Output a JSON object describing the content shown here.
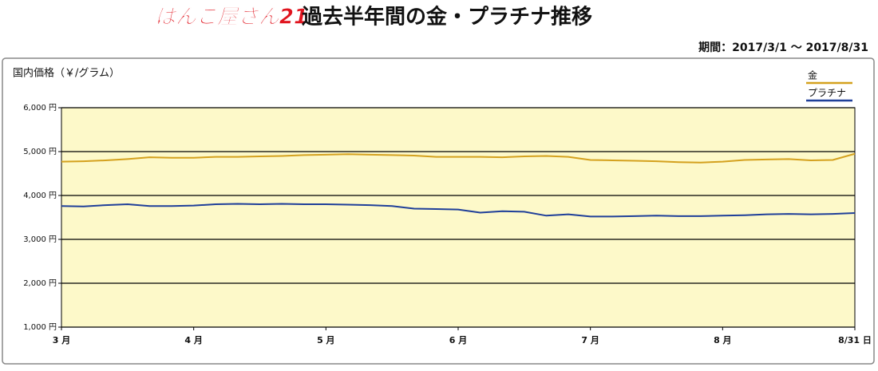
{
  "chart_data": {
    "type": "line",
    "logo": "はんこ屋さん21",
    "title": "過去半年間の金・プラチナ推移",
    "subtitle": "期間：2017/3/1 〜 2017/8/31",
    "y_label": "国内価格（￥/グラム）",
    "categories": [
      "3 月",
      null,
      null,
      null,
      null,
      null,
      "4 月",
      null,
      null,
      null,
      null,
      null,
      "5 月",
      null,
      null,
      null,
      null,
      null,
      "6 月",
      null,
      null,
      null,
      null,
      null,
      "7 月",
      null,
      null,
      null,
      null,
      null,
      "8 月",
      null,
      null,
      null,
      null,
      null,
      "8/31 日"
    ],
    "series": [
      {
        "name": "金",
        "color": "#d4a11e",
        "values": [
          4770,
          4780,
          4800,
          4830,
          4870,
          4860,
          4860,
          4880,
          4880,
          4890,
          4900,
          4920,
          4930,
          4940,
          4930,
          4920,
          4910,
          4880,
          4880,
          4880,
          4870,
          4890,
          4900,
          4880,
          4810,
          4800,
          4790,
          4780,
          4760,
          4750,
          4770,
          4810,
          4820,
          4830,
          4800,
          4810,
          4950
        ]
      },
      {
        "name": "プラチナ",
        "color": "#1f3f99",
        "values": [
          3760,
          3750,
          3780,
          3800,
          3760,
          3760,
          3770,
          3800,
          3810,
          3800,
          3810,
          3800,
          3800,
          3790,
          3780,
          3760,
          3700,
          3690,
          3680,
          3610,
          3640,
          3630,
          3540,
          3570,
          3520,
          3520,
          3530,
          3540,
          3530,
          3530,
          3540,
          3550,
          3570,
          3580,
          3570,
          3580,
          3600
        ]
      }
    ],
    "ylim": [
      1000,
      6000
    ],
    "yticks": [
      {
        "value": 1000,
        "label": "1,000 円"
      },
      {
        "value": 2000,
        "label": "2,000 円"
      },
      {
        "value": 3000,
        "label": "3,000 円"
      },
      {
        "value": 4000,
        "label": "4,000 円"
      },
      {
        "value": 5000,
        "label": "5,000 円"
      },
      {
        "value": 6000,
        "label": "6,000 円"
      }
    ],
    "grid": true,
    "legend": "top-right"
  }
}
